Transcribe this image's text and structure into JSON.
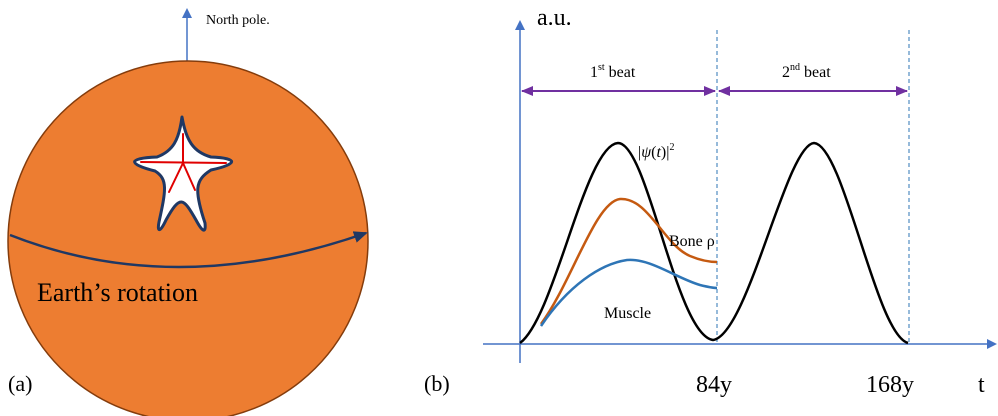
{
  "panel_a": {
    "tag": "(a)",
    "axis_label": "North pole.",
    "rotation_label": "Earth’s rotation",
    "colors": {
      "earth_fill": "#ED7D31",
      "earth_stroke": "#843C0C",
      "arrow": "#1F3864",
      "axis": "#4472C4",
      "star_fill": "#FFFFFF",
      "star_outline": "#1F3864",
      "star_veins": "#E00000"
    },
    "icons": {
      "star": "starfish-outline-icon"
    }
  },
  "panel_b": {
    "tag": "(b)",
    "y_label": "a.u.",
    "x_label": "t",
    "tick_1": "84y",
    "tick_2": "168y",
    "beat_1": {
      "num": "1",
      "sup": "st",
      "word": " beat"
    },
    "beat_2": {
      "num": "2",
      "sup": "nd",
      "word": " beat"
    },
    "psi": {
      "bar1": "|",
      "psi": "ψ",
      "open": "(",
      "t": "t",
      "close": ")",
      "bar2": "|",
      "sup": "2"
    },
    "bone_label": "Bone ρ",
    "muscle_label": "Muscle",
    "colors": {
      "axis": "#4472C4",
      "span_arrow": "#7030A0",
      "psi_curve": "#000000",
      "bone": "#C55A11",
      "muscle": "#2E75B6",
      "divider": "#2E75B6"
    }
  }
}
